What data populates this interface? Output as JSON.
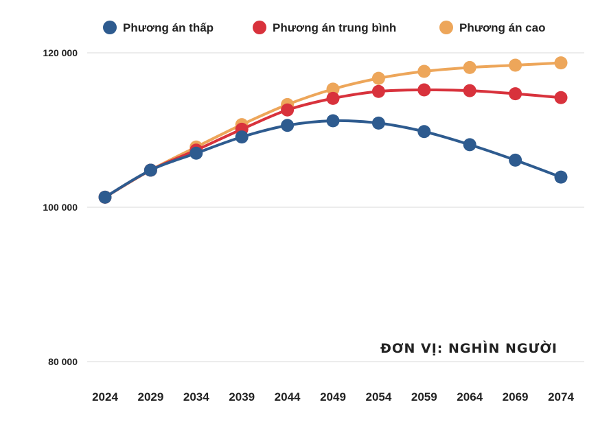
{
  "chart_data": {
    "type": "line",
    "title": "",
    "xlabel": "",
    "ylabel": "",
    "unit_note": "ĐƠN VỊ: NGHÌN NGƯỜI",
    "x": [
      "2024",
      "2029",
      "2034",
      "2039",
      "2044",
      "2049",
      "2054",
      "2059",
      "2064",
      "2069",
      "2074"
    ],
    "ylim": [
      80000,
      120000
    ],
    "yticks": [
      80000,
      100000,
      120000
    ],
    "ytick_labels": [
      "80 000",
      "100 000",
      "120 000"
    ],
    "grid": true,
    "legend_position": "top",
    "series": [
      {
        "name": "Phương án thấp",
        "color": "#2e5b8f",
        "values": [
          101300,
          104800,
          107000,
          109100,
          110600,
          111200,
          110900,
          109800,
          108100,
          106100,
          103900
        ]
      },
      {
        "name": "Phương án trung bình",
        "color": "#d8323c",
        "values": [
          101300,
          104800,
          107400,
          110100,
          112600,
          114100,
          115000,
          115200,
          115100,
          114700,
          114200
        ]
      },
      {
        "name": "Phương án cao",
        "color": "#eda65a",
        "values": [
          101300,
          104800,
          107800,
          110700,
          113300,
          115300,
          116700,
          117600,
          118100,
          118400,
          118700
        ]
      }
    ]
  }
}
